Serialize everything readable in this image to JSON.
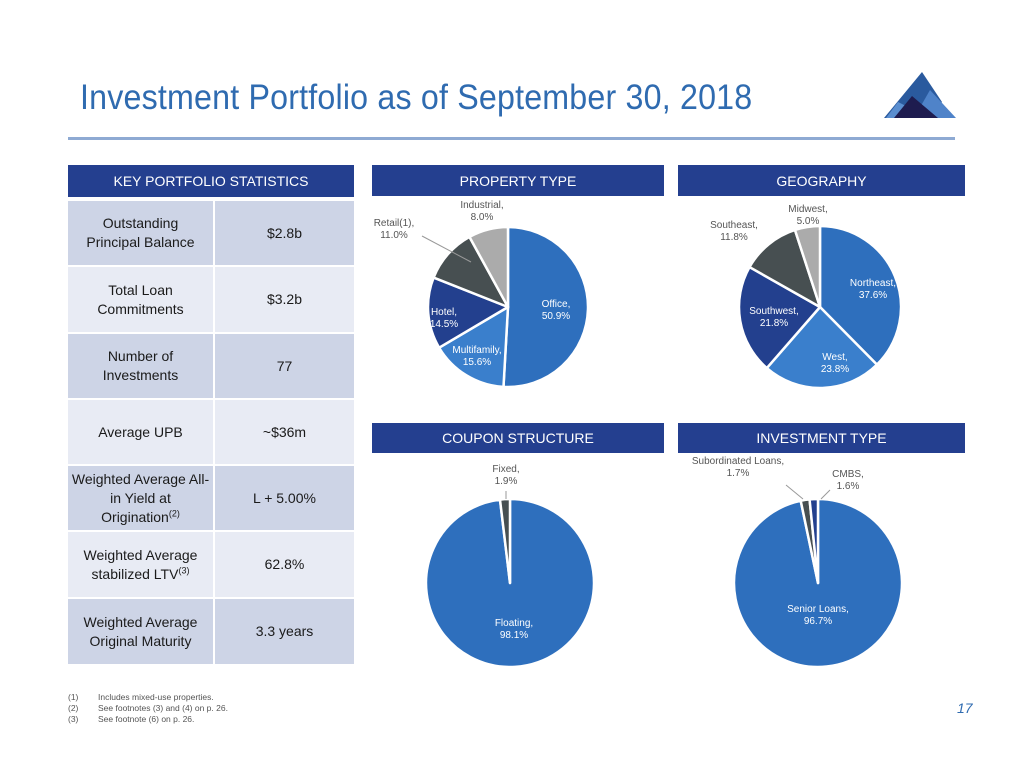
{
  "title": "Investment Portfolio as of September 30, 2018",
  "colors": {
    "title": "#2f6bb0",
    "header_bg": "#243f8f",
    "rule": "#8eaad3",
    "blue_main": "#2e6fbd",
    "blue_light": "#3a7fcc",
    "navy": "#23408e",
    "dark_gray": "#474f51",
    "light_gray": "#ababab"
  },
  "stats": {
    "header": "KEY PORTFOLIO STATISTICS",
    "rows": [
      {
        "label": "Outstanding Principal Balance",
        "value": "$2.8b"
      },
      {
        "label": "Total Loan Commitments",
        "value": "$3.2b"
      },
      {
        "label": "Number of Investments",
        "value": "77"
      },
      {
        "label": "Average UPB",
        "value": "~$36m"
      },
      {
        "label": "Weighted Average All-in Yield at Origination",
        "sup": "(2)",
        "value": "L + 5.00%"
      },
      {
        "label": "Weighted Average stabilized LTV",
        "sup": "(3)",
        "value": "62.8%"
      },
      {
        "label": "Weighted Average Original Maturity",
        "value": "3.3 years"
      }
    ]
  },
  "chart_data": [
    {
      "type": "pie",
      "title": "PROPERTY TYPE",
      "categories": [
        "Office",
        "Multifamily",
        "Hotel",
        "Retail(1)",
        "Industrial"
      ],
      "values": [
        50.9,
        15.6,
        14.5,
        11.0,
        8.0
      ],
      "labels": [
        "Office, 50.9%",
        "Multifamily, 15.6%",
        "Hotel, 14.5%",
        "Retail(1), 11.0%",
        "Industrial, 8.0%"
      ],
      "colors": [
        "#2e6fbd",
        "#3a7fcc",
        "#23408e",
        "#474f51",
        "#ababab"
      ]
    },
    {
      "type": "pie",
      "title": "GEOGRAPHY",
      "categories": [
        "Northeast",
        "West",
        "Southwest",
        "Southeast",
        "Midwest"
      ],
      "values": [
        37.6,
        23.8,
        21.8,
        11.8,
        5.0
      ],
      "labels": [
        "Northeast, 37.6%",
        "West, 23.8%",
        "Southwest, 21.8%",
        "Southeast, 11.8%",
        "Midwest, 5.0%"
      ],
      "colors": [
        "#2e6fbd",
        "#3a7fcc",
        "#23408e",
        "#474f51",
        "#ababab"
      ]
    },
    {
      "type": "pie",
      "title": "COUPON STRUCTURE",
      "categories": [
        "Floating",
        "Fixed"
      ],
      "values": [
        98.1,
        1.9
      ],
      "labels": [
        "Floating, 98.1%",
        "Fixed, 1.9%"
      ],
      "colors": [
        "#2e6fbd",
        "#474f51"
      ]
    },
    {
      "type": "pie",
      "title": "INVESTMENT TYPE",
      "categories": [
        "Senior Loans",
        "Subordinated Loans",
        "CMBS"
      ],
      "values": [
        96.7,
        1.7,
        1.6
      ],
      "labels": [
        "Senior Loans, 96.7%",
        "Subordinated Loans, 1.7%",
        "CMBS, 1.6%"
      ],
      "colors": [
        "#2e6fbd",
        "#474f51",
        "#23408e"
      ]
    }
  ],
  "footnotes": [
    {
      "num": "(1)",
      "text": "Includes mixed-use properties."
    },
    {
      "num": "(2)",
      "text": "See footnotes (3) and (4) on p. 26."
    },
    {
      "num": "(3)",
      "text": "See footnote (6) on p. 26."
    }
  ],
  "page_number": "17"
}
